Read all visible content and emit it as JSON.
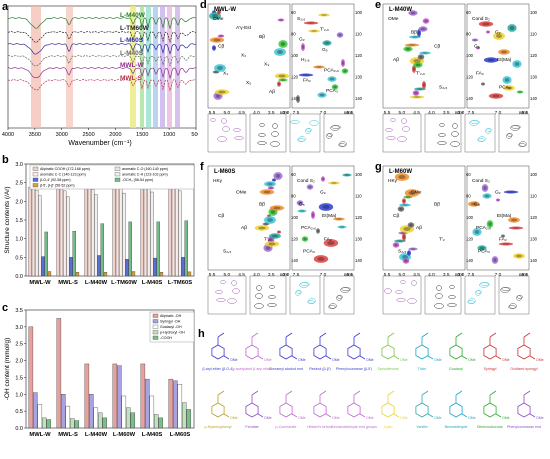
{
  "panel_letters": [
    "a",
    "b",
    "c",
    "d",
    "e",
    "f",
    "g",
    "h"
  ],
  "panel_a": {
    "xlabel": "Wavenumber (cm⁻¹)",
    "ticks": [
      "4000",
      "3500",
      "3000",
      "2500",
      "2000",
      "1500",
      "1000",
      "500"
    ],
    "samples": [
      "L-M40W",
      "L-TM60W",
      "L-M60S",
      "L-M40S",
      "MWL-W",
      "MWL-S"
    ]
  },
  "chart_data": [
    {
      "type": "bar",
      "panel": "b",
      "ylabel": "Structure contents (/Ar)",
      "ylim": [
        0,
        3.0
      ],
      "yticks": [
        "0.0",
        "0.5",
        "1.0",
        "1.5",
        "2.0",
        "2.5",
        "3.0"
      ],
      "categories": [
        "MWL-W",
        "MWL-S",
        "L-M40W",
        "L-TM60W",
        "L-M40S",
        "L-TM60S"
      ],
      "series": [
        {
          "name": "Aliphatic COOH (172-168 ppm)",
          "color": "#f3cfc8",
          "values": [
            2.38,
            2.35,
            2.38,
            2.42,
            2.45,
            2.48
          ]
        },
        {
          "name": "aromatic C-O (160-140 ppm)",
          "color": "#f6e3de",
          "values": [
            2.45,
            2.42,
            2.45,
            2.48,
            2.5,
            2.5
          ]
        },
        {
          "name": "aromatic C-C (140-123 ppm)",
          "color": "#fbeeea",
          "values": [
            2.3,
            2.28,
            2.32,
            2.35,
            2.38,
            2.42
          ]
        },
        {
          "name": "aromatic C-H (123-102 ppm)",
          "color": "#f0f0f0",
          "values": [
            2.15,
            2.12,
            2.18,
            2.22,
            2.25,
            2.28
          ]
        },
        {
          "name": "β-O-4' (92-58 ppm)",
          "color": "#5a6ed6",
          "values": [
            0.52,
            0.5,
            0.55,
            0.45,
            0.48,
            0.5
          ]
        },
        {
          "name": "-OCH₃ (58-54 ppm)",
          "color": "#6fbf83",
          "values": [
            1.18,
            1.2,
            1.4,
            1.45,
            1.45,
            1.48
          ]
        },
        {
          "name": "β-5', β-β' (56-52 ppm)",
          "color": "#d9a03a",
          "values": [
            0.12,
            0.1,
            0.1,
            0.12,
            0.1,
            0.11
          ]
        }
      ]
    },
    {
      "type": "bar",
      "panel": "c",
      "ylabel": "-OH content (mmol/g)",
      "ylim": [
        0,
        3.5
      ],
      "yticks": [
        "0.0",
        "0.5",
        "1.0",
        "1.5",
        "2.0",
        "2.5",
        "3.0",
        "3.5"
      ],
      "categories": [
        "MWL-W",
        "MWL-S",
        "L-M40W",
        "L-M60W",
        "L-M40S",
        "L-M60S"
      ],
      "series": [
        {
          "name": "Aliphatic -OH",
          "color": "#e8a09d",
          "values": [
            3.0,
            3.25,
            1.9,
            1.9,
            1.9,
            1.45
          ]
        },
        {
          "name": "Syringyl -OH",
          "color": "#a6a3e0",
          "values": [
            1.05,
            1.0,
            1.0,
            1.85,
            1.45,
            1.4
          ]
        },
        {
          "name": "Guaiacyl -OH",
          "color": "#ffffff",
          "values": [
            0.7,
            0.65,
            0.6,
            0.95,
            0.95,
            1.3
          ]
        },
        {
          "name": "p-Hydroxyl -OH",
          "color": "#bde3bc",
          "values": [
            0.3,
            0.28,
            0.45,
            0.6,
            0.4,
            0.75
          ]
        },
        {
          "name": "-COOH",
          "color": "#7cbe8a",
          "values": [
            0.25,
            0.22,
            0.3,
            0.45,
            0.3,
            0.55
          ]
        }
      ]
    }
  ],
  "nmr_panels": [
    {
      "letter": "d",
      "title": "MWL-W",
      "labels": [
        "OMe",
        "A'γ-Est",
        "Bβ",
        "Cβ",
        "X₂",
        "X₃",
        "X₄",
        "X₅",
        "Aβ",
        "S₂,₆",
        "T'₂,₆",
        "G₂",
        "G₅",
        "H₂,₆",
        "PCA₂,₆",
        "FA₂",
        "PCA₃"
      ]
    },
    {
      "letter": "e",
      "title": "L-M40W",
      "labels": [
        "OMe",
        "Bβ",
        "Cβ",
        "Aβ",
        "T'₂,₆",
        "S₂,₆",
        "Cond S₂",
        "G₂",
        "G₅",
        "Et(Ma)",
        "FA₂",
        "PCA₃"
      ]
    },
    {
      "letter": "f",
      "title": "L-M60S",
      "labels": [
        "HKγ",
        "OMe",
        "Bβ",
        "Cβ",
        "Aβ",
        "T'₂",
        "S₂,₆",
        "Cond S₂",
        "G₂",
        "G₅",
        "Et(Ma)",
        "PCA₂,₆",
        "FA₂",
        "PCA₃"
      ]
    },
    {
      "letter": "g",
      "title": "L-M60W",
      "labels": [
        "HKγ",
        "OMe",
        "Bβ",
        "Cβ",
        "Aβ",
        "T'₂",
        "S₂,₆",
        "Cond S₂",
        "G₂",
        "G₅",
        "Et(Ma)",
        "PCA₂,₆",
        "FA₂",
        "PCA₃"
      ]
    }
  ],
  "nmr_axes": {
    "left_ticks": [
      "5.5",
      "5.0",
      "4.5",
      "4.0",
      "3.5",
      "3.0"
    ],
    "right_ticks": [
      "7.5",
      "7.0",
      "6.5"
    ],
    "ppm": "ppm",
    "y_left": [
      "60",
      "80",
      "100",
      "120",
      "140"
    ],
    "y_right": [
      "100",
      "110",
      "120",
      "130",
      "140"
    ]
  },
  "panel_h": {
    "structures": [
      {
        "label": "β-aryl ether (β-O-4)",
        "color": "#3a3ad0"
      },
      {
        "label": "γ-acetylated β-aryl ether",
        "color": "#c06ad0"
      },
      {
        "label": "Cinnamyl alcohol end",
        "color": "#3a3ad0"
      },
      {
        "label": "Resinol (β-β')",
        "color": "#3a3ad0"
      },
      {
        "label": "Phenylcoumaran (β-5')",
        "color": "#3a3ad0"
      },
      {
        "label": "Spirodienone",
        "color": "#7cc44c"
      },
      {
        "label": "Tricin",
        "color": "#1aa6c9"
      },
      {
        "label": "Guaiacyl",
        "color": "#33a833"
      },
      {
        "label": "Syringyl",
        "color": "#cc3333"
      },
      {
        "label": "Oxidized syringyl",
        "color": "#cc3333"
      },
      {
        "label": "p-Hydroxyphenyl",
        "color": "#b6a02a"
      },
      {
        "label": "Ferulate",
        "color": "#8a4fc6"
      },
      {
        "label": "p-Coumarate",
        "color": "#c06ad0"
      },
      {
        "label": "Hibbert's ketone",
        "color": "#c06ad0"
      },
      {
        "label": "Cinnamaldehyde end groups",
        "color": "#c06ad0"
      },
      {
        "label": "Xylan",
        "color": "#e6d43a"
      },
      {
        "label": "Vanillin",
        "color": "#33a8a8"
      },
      {
        "label": "Benzaldehyde",
        "color": "#1aa6c9"
      },
      {
        "label": "Dibenzodioxocin",
        "color": "#33a833"
      },
      {
        "label": "Phenylcoumaran end",
        "color": "#8a4fc6"
      }
    ]
  }
}
